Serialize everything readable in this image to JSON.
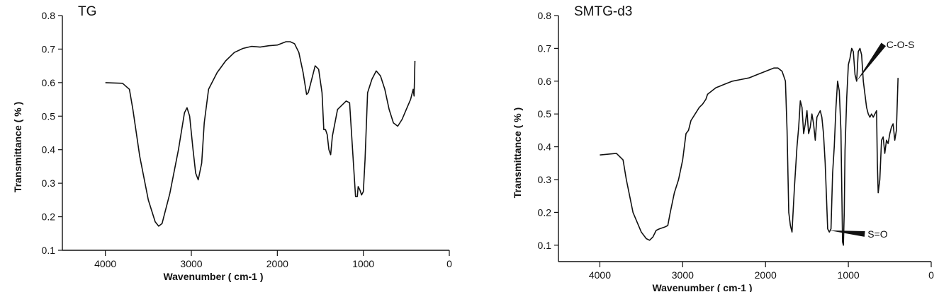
{
  "chart_data": [
    {
      "type": "line",
      "title": "TG",
      "xlabel": "Wavenumber ( cm-1 )",
      "ylabel": "Transmittance ( % )",
      "xlim": [
        4500,
        0
      ],
      "ylim": [
        0.1,
        0.8
      ],
      "xticks": [
        4000,
        3000,
        2000,
        1000,
        0
      ],
      "yticks": [
        0.1,
        0.2,
        0.3,
        0.4,
        0.5,
        0.6,
        0.7,
        0.8
      ],
      "grid": false,
      "series": [
        {
          "x": [
            4000,
            3800,
            3720,
            3680,
            3600,
            3500,
            3420,
            3380,
            3340,
            3250,
            3150,
            3080,
            3050,
            3020,
            2980,
            2950,
            2920,
            2880,
            2850,
            2800,
            2700,
            2600,
            2500,
            2400,
            2300,
            2200,
            2100,
            2000,
            1900,
            1850,
            1800,
            1750,
            1700,
            1660,
            1640,
            1600,
            1560,
            1520,
            1480,
            1460,
            1440,
            1420,
            1400,
            1380,
            1360,
            1300,
            1200,
            1160,
            1120,
            1090,
            1070,
            1060,
            1040,
            1020,
            1000,
            980,
            950,
            900,
            850,
            800,
            750,
            700,
            650,
            600,
            550,
            500,
            450,
            420,
            410,
            400
          ],
          "y": [
            0.6,
            0.598,
            0.58,
            0.52,
            0.38,
            0.25,
            0.185,
            0.172,
            0.18,
            0.27,
            0.4,
            0.51,
            0.525,
            0.5,
            0.4,
            0.33,
            0.31,
            0.36,
            0.48,
            0.58,
            0.63,
            0.665,
            0.69,
            0.702,
            0.708,
            0.706,
            0.71,
            0.712,
            0.722,
            0.722,
            0.716,
            0.69,
            0.63,
            0.565,
            0.57,
            0.61,
            0.65,
            0.64,
            0.57,
            0.46,
            0.46,
            0.445,
            0.4,
            0.385,
            0.44,
            0.52,
            0.545,
            0.54,
            0.38,
            0.26,
            0.26,
            0.29,
            0.28,
            0.265,
            0.275,
            0.37,
            0.57,
            0.61,
            0.635,
            0.62,
            0.58,
            0.52,
            0.48,
            0.47,
            0.49,
            0.52,
            0.55,
            0.58,
            0.56,
            0.665
          ]
        }
      ],
      "annotations": []
    },
    {
      "type": "line",
      "title": "SMTG-d3",
      "xlabel": "Wavenumber ( cm-1 )",
      "ylabel": "Transmittance ( % )",
      "xlim": [
        4500,
        0
      ],
      "ylim": [
        0.05,
        0.8
      ],
      "xticks": [
        4000,
        3000,
        2000,
        1000,
        0
      ],
      "yticks": [
        0.1,
        0.2,
        0.3,
        0.4,
        0.5,
        0.6,
        0.7,
        0.8
      ],
      "grid": false,
      "series": [
        {
          "x": [
            4000,
            3800,
            3720,
            3680,
            3600,
            3500,
            3440,
            3400,
            3360,
            3320,
            3280,
            3220,
            3180,
            3150,
            3100,
            3050,
            3000,
            2960,
            2930,
            2900,
            2850,
            2800,
            2760,
            2720,
            2700,
            2600,
            2500,
            2400,
            2300,
            2200,
            2100,
            2000,
            1900,
            1850,
            1800,
            1760,
            1740,
            1720,
            1700,
            1680,
            1650,
            1620,
            1600,
            1580,
            1560,
            1540,
            1520,
            1500,
            1480,
            1460,
            1440,
            1420,
            1400,
            1380,
            1360,
            1340,
            1320,
            1300,
            1280,
            1250,
            1230,
            1210,
            1190,
            1170,
            1150,
            1130,
            1110,
            1090,
            1070,
            1060,
            1050,
            1040,
            1020,
            1000,
            980,
            960,
            940,
            920,
            900,
            880,
            860,
            840,
            820,
            800,
            780,
            760,
            740,
            720,
            700,
            680,
            660,
            650,
            640,
            620,
            600,
            580,
            560,
            540,
            520,
            500,
            480,
            460,
            440,
            420,
            400
          ],
          "y": [
            0.375,
            0.38,
            0.36,
            0.3,
            0.2,
            0.14,
            0.12,
            0.115,
            0.125,
            0.145,
            0.15,
            0.155,
            0.16,
            0.2,
            0.26,
            0.3,
            0.36,
            0.44,
            0.45,
            0.48,
            0.5,
            0.52,
            0.53,
            0.545,
            0.56,
            0.58,
            0.59,
            0.6,
            0.605,
            0.61,
            0.62,
            0.63,
            0.64,
            0.64,
            0.63,
            0.6,
            0.45,
            0.2,
            0.16,
            0.14,
            0.28,
            0.4,
            0.46,
            0.54,
            0.52,
            0.44,
            0.47,
            0.51,
            0.44,
            0.46,
            0.5,
            0.47,
            0.42,
            0.49,
            0.5,
            0.51,
            0.49,
            0.44,
            0.35,
            0.15,
            0.14,
            0.15,
            0.32,
            0.4,
            0.52,
            0.6,
            0.57,
            0.45,
            0.11,
            0.1,
            0.2,
            0.39,
            0.55,
            0.65,
            0.67,
            0.7,
            0.69,
            0.62,
            0.6,
            0.69,
            0.7,
            0.68,
            0.6,
            0.56,
            0.52,
            0.5,
            0.49,
            0.5,
            0.49,
            0.5,
            0.51,
            0.35,
            0.26,
            0.3,
            0.42,
            0.43,
            0.38,
            0.42,
            0.41,
            0.44,
            0.46,
            0.47,
            0.42,
            0.45,
            0.61
          ]
        }
      ],
      "annotations": [
        {
          "text": "C-O-S",
          "x": 900,
          "y": 0.6
        },
        {
          "text": "S=O",
          "x": 1230,
          "y": 0.145
        }
      ]
    }
  ]
}
